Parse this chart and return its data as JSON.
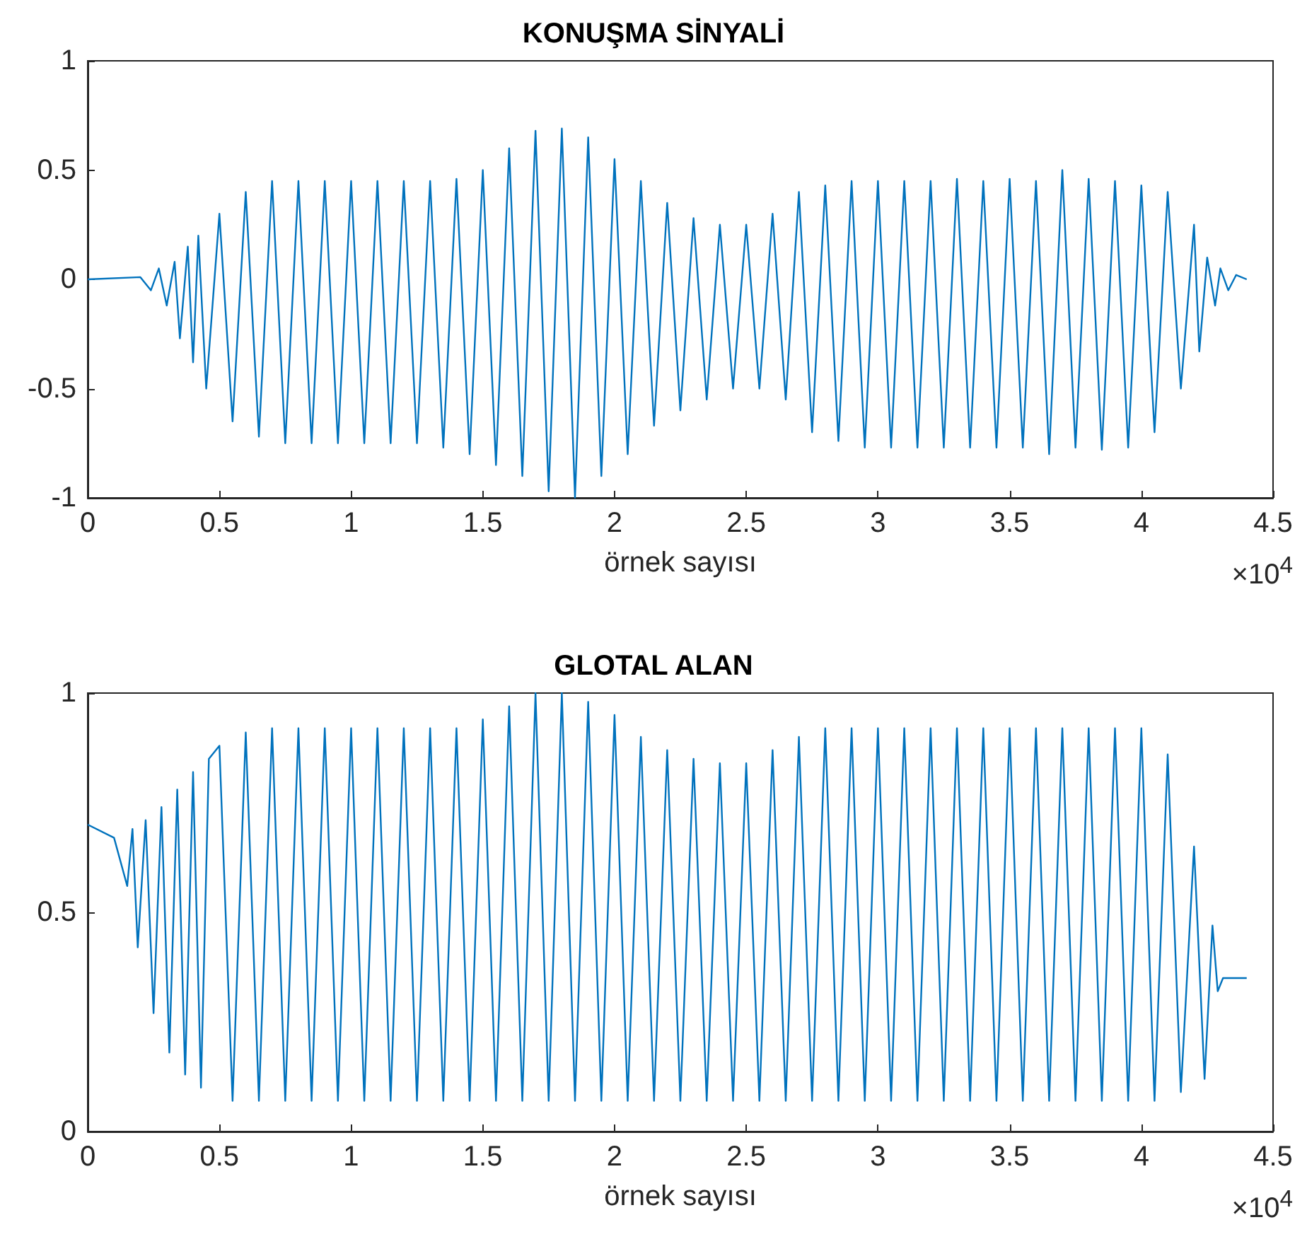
{
  "chart_data": [
    {
      "type": "line",
      "title": "KONUŞMA SİNYALİ",
      "xlabel": "örnek sayısı",
      "annotations": [
        "×10$^{4}$"
      ],
      "color": "#0072bd",
      "xlim": [
        0,
        4.5
      ],
      "xticks": [
        0,
        0.5,
        1,
        1.5,
        2,
        2.5,
        3,
        3.5,
        4,
        4.5
      ],
      "ylim": [
        -1,
        1
      ],
      "yticks": [
        -1,
        -0.5,
        0,
        0.5,
        1
      ],
      "x": [
        0,
        0.2,
        0.24,
        0.27,
        0.3,
        0.33,
        0.35,
        0.38,
        0.4,
        0.42,
        0.45,
        0.5,
        0.55,
        0.6,
        0.65,
        0.7,
        0.75,
        0.8,
        0.85,
        0.9,
        0.95,
        1.0,
        1.05,
        1.1,
        1.15,
        1.2,
        1.25,
        1.3,
        1.35,
        1.4,
        1.45,
        1.5,
        1.55,
        1.6,
        1.65,
        1.7,
        1.75,
        1.8,
        1.85,
        1.9,
        1.95,
        2.0,
        2.05,
        2.1,
        2.15,
        2.2,
        2.25,
        2.3,
        2.35,
        2.4,
        2.45,
        2.5,
        2.55,
        2.6,
        2.65,
        2.7,
        2.75,
        2.8,
        2.85,
        2.9,
        2.95,
        3.0,
        3.05,
        3.1,
        3.15,
        3.2,
        3.25,
        3.3,
        3.35,
        3.4,
        3.45,
        3.5,
        3.55,
        3.6,
        3.65,
        3.7,
        3.75,
        3.8,
        3.85,
        3.9,
        3.95,
        4.0,
        4.05,
        4.1,
        4.15,
        4.2,
        4.22,
        4.25,
        4.28,
        4.3,
        4.33,
        4.36,
        4.4
      ],
      "values": [
        0,
        0.01,
        -0.05,
        0.05,
        -0.12,
        0.08,
        -0.27,
        0.15,
        -0.38,
        0.2,
        -0.5,
        0.3,
        -0.65,
        0.4,
        -0.72,
        0.45,
        -0.75,
        0.45,
        -0.75,
        0.45,
        -0.75,
        0.45,
        -0.75,
        0.45,
        -0.75,
        0.45,
        -0.75,
        0.45,
        -0.77,
        0.46,
        -0.8,
        0.5,
        -0.85,
        0.6,
        -0.9,
        0.68,
        -0.97,
        0.69,
        -1,
        0.65,
        -0.9,
        0.55,
        -0.8,
        0.45,
        -0.67,
        0.35,
        -0.6,
        0.28,
        -0.55,
        0.25,
        -0.5,
        0.25,
        -0.5,
        0.3,
        -0.55,
        0.4,
        -0.7,
        0.43,
        -0.74,
        0.45,
        -0.77,
        0.45,
        -0.77,
        0.45,
        -0.77,
        0.45,
        -0.77,
        0.46,
        -0.77,
        0.45,
        -0.77,
        0.46,
        -0.77,
        0.45,
        -0.8,
        0.5,
        -0.77,
        0.46,
        -0.78,
        0.45,
        -0.77,
        0.43,
        -0.7,
        0.4,
        -0.5,
        0.25,
        -0.33,
        0.1,
        -0.12,
        0.05,
        -0.05,
        0.02,
        0
      ]
    },
    {
      "type": "line",
      "title": "GLOTAL ALAN",
      "xlabel": "örnek sayısı",
      "annotations": [
        "×10$^{4}$"
      ],
      "color": "#0072bd",
      "xlim": [
        0,
        4.5
      ],
      "xticks": [
        0,
        0.5,
        1,
        1.5,
        2,
        2.5,
        3,
        3.5,
        4,
        4.5
      ],
      "ylim": [
        0,
        1
      ],
      "yticks": [
        0,
        0.5,
        1
      ],
      "x": [
        0,
        0.1,
        0.15,
        0.17,
        0.19,
        0.22,
        0.25,
        0.28,
        0.31,
        0.34,
        0.37,
        0.4,
        0.43,
        0.46,
        0.5,
        0.55,
        0.6,
        0.65,
        0.7,
        0.75,
        0.8,
        0.85,
        0.9,
        0.95,
        1.0,
        1.05,
        1.1,
        1.15,
        1.2,
        1.25,
        1.3,
        1.35,
        1.4,
        1.45,
        1.5,
        1.55,
        1.6,
        1.65,
        1.7,
        1.75,
        1.8,
        1.85,
        1.9,
        1.95,
        2.0,
        2.05,
        2.1,
        2.15,
        2.2,
        2.25,
        2.3,
        2.35,
        2.4,
        2.45,
        2.5,
        2.55,
        2.6,
        2.65,
        2.7,
        2.75,
        2.8,
        2.85,
        2.9,
        2.95,
        3.0,
        3.05,
        3.1,
        3.15,
        3.2,
        3.25,
        3.3,
        3.35,
        3.4,
        3.45,
        3.5,
        3.55,
        3.6,
        3.65,
        3.7,
        3.75,
        3.8,
        3.85,
        3.9,
        3.95,
        4.0,
        4.05,
        4.1,
        4.15,
        4.2,
        4.24,
        4.27,
        4.29,
        4.31,
        4.4
      ],
      "values": [
        0.7,
        0.67,
        0.56,
        0.69,
        0.42,
        0.71,
        0.27,
        0.74,
        0.18,
        0.78,
        0.13,
        0.82,
        0.1,
        0.85,
        0.88,
        0.07,
        0.91,
        0.07,
        0.92,
        0.07,
        0.92,
        0.07,
        0.92,
        0.07,
        0.92,
        0.07,
        0.92,
        0.07,
        0.92,
        0.07,
        0.92,
        0.07,
        0.92,
        0.07,
        0.94,
        0.07,
        0.97,
        0.07,
        1,
        0.07,
        1,
        0.07,
        0.98,
        0.07,
        0.95,
        0.07,
        0.9,
        0.07,
        0.87,
        0.07,
        0.85,
        0.07,
        0.84,
        0.07,
        0.84,
        0.07,
        0.87,
        0.07,
        0.9,
        0.07,
        0.92,
        0.07,
        0.92,
        0.07,
        0.92,
        0.07,
        0.92,
        0.07,
        0.92,
        0.07,
        0.92,
        0.07,
        0.92,
        0.07,
        0.92,
        0.07,
        0.92,
        0.07,
        0.92,
        0.07,
        0.92,
        0.07,
        0.92,
        0.07,
        0.92,
        0.07,
        0.86,
        0.09,
        0.65,
        0.12,
        0.47,
        0.32,
        0.35,
        0.35
      ]
    }
  ]
}
